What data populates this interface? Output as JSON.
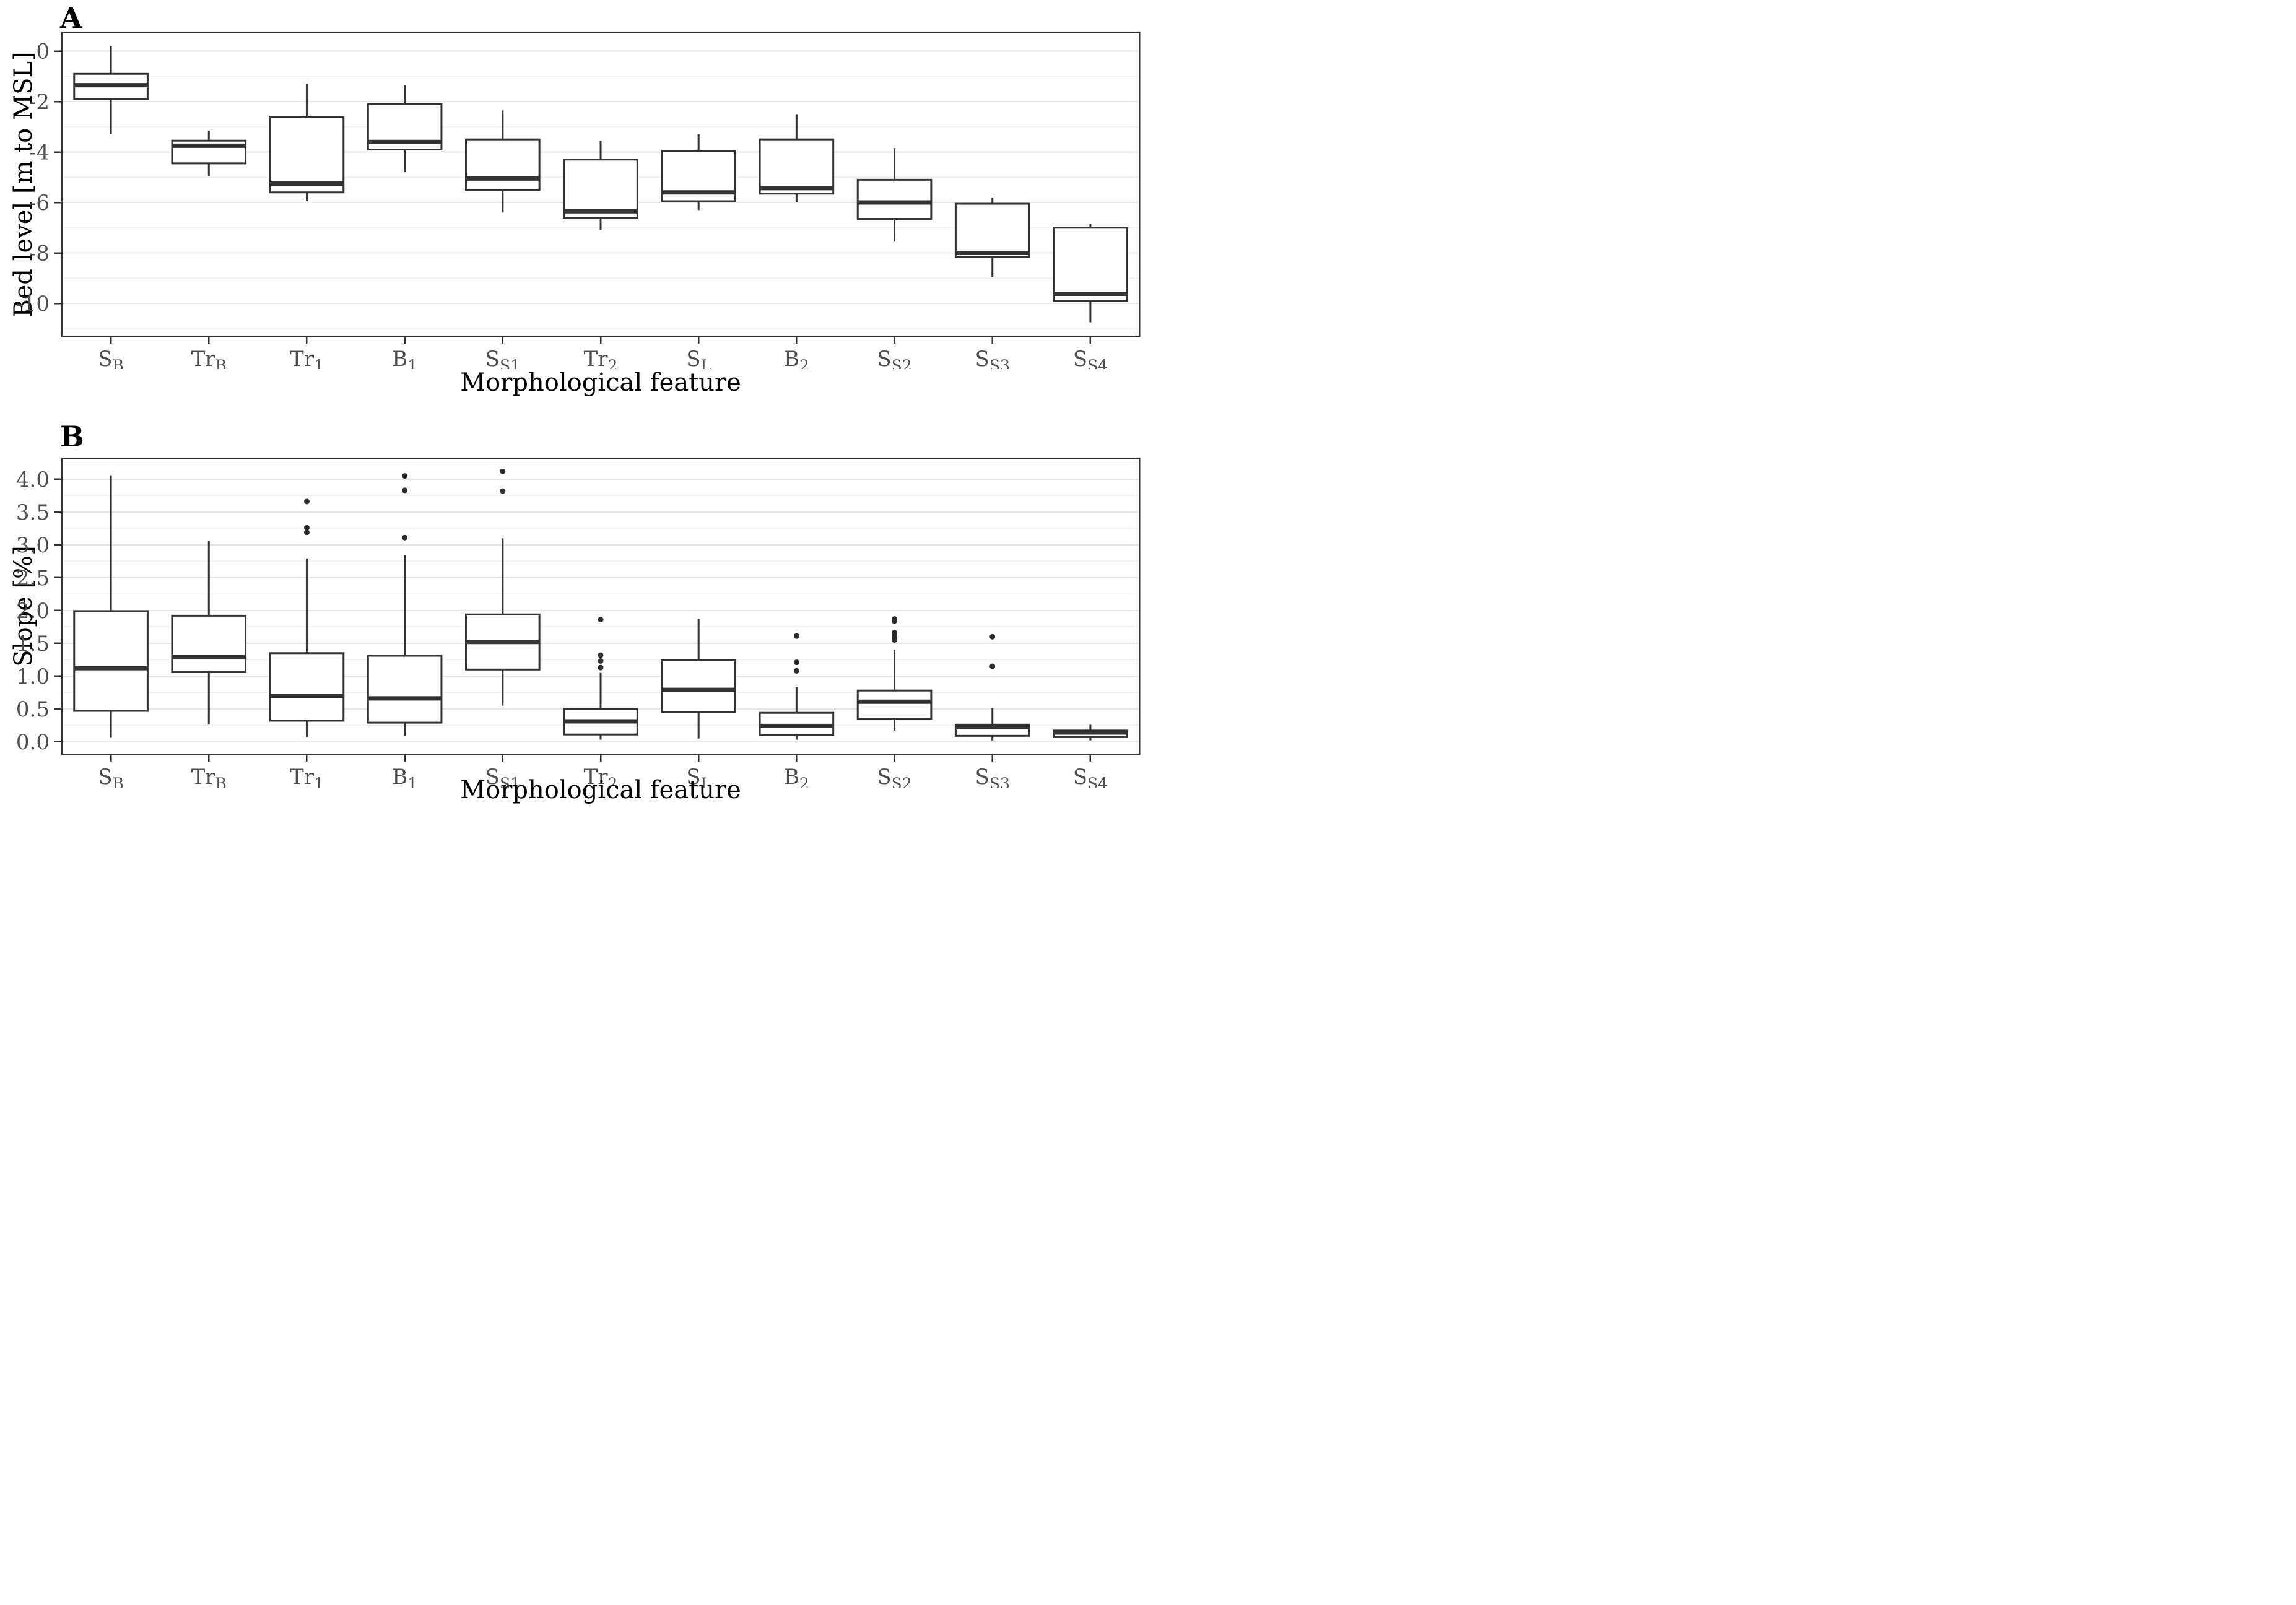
{
  "figure": {
    "kind": "two stacked box-plot panels",
    "background": "#ffffff"
  },
  "style": {
    "box_line_color": "#333333",
    "panel_border_color": "#333333",
    "tick_label_color": "#4d4d4d",
    "axis_title_color": "#000000",
    "major_grid_color": "#e6e6e6",
    "minor_grid_color": "#f1f1f1",
    "box_fill": "#ffffff",
    "outlier_color": "#2b2b2b"
  },
  "chart_data": [
    {
      "type": "boxplot",
      "title": "A",
      "xlabel": "Morphological feature",
      "ylabel": "Bed level [m to MSL]",
      "grid": true,
      "legend": "none",
      "ylim": [
        -11.3,
        0.75
      ],
      "y_ticks": [
        {
          "v": 0,
          "label": "0"
        },
        {
          "v": -2,
          "label": "-2"
        },
        {
          "v": -4,
          "label": "-4"
        },
        {
          "v": -6,
          "label": "-6"
        },
        {
          "v": -8,
          "label": "-8"
        },
        {
          "v": -10,
          "label": "-10"
        }
      ],
      "y_minor": [
        -1,
        -3,
        -5,
        -7,
        -9,
        -11
      ],
      "categories": [
        {
          "base": "S",
          "sub": "B"
        },
        {
          "base": "Tr",
          "sub": "B"
        },
        {
          "base": "Tr",
          "sub": "1"
        },
        {
          "base": "B",
          "sub": "1"
        },
        {
          "base": "S",
          "sub": "S1"
        },
        {
          "base": "Tr",
          "sub": "2"
        },
        {
          "base": "S",
          "sub": "L"
        },
        {
          "base": "B",
          "sub": "2"
        },
        {
          "base": "S",
          "sub": "S2"
        },
        {
          "base": "S",
          "sub": "S3"
        },
        {
          "base": "S",
          "sub": "S4"
        }
      ],
      "boxes": [
        {
          "whislo": -3.3,
          "q1": -1.9,
          "med": -1.35,
          "q3": -0.9,
          "whishi": 0.2,
          "outliers": []
        },
        {
          "whislo": -4.95,
          "q1": -4.45,
          "med": -3.75,
          "q3": -3.55,
          "whishi": -3.15,
          "outliers": []
        },
        {
          "whislo": -5.95,
          "q1": -5.6,
          "med": -5.25,
          "q3": -2.6,
          "whishi": -1.3,
          "outliers": []
        },
        {
          "whislo": -4.8,
          "q1": -3.9,
          "med": -3.6,
          "q3": -2.1,
          "whishi": -1.35,
          "outliers": []
        },
        {
          "whislo": -6.4,
          "q1": -5.5,
          "med": -5.05,
          "q3": -3.5,
          "whishi": -2.35,
          "outliers": []
        },
        {
          "whislo": -7.1,
          "q1": -6.6,
          "med": -6.35,
          "q3": -4.3,
          "whishi": -3.55,
          "outliers": []
        },
        {
          "whislo": -6.3,
          "q1": -5.95,
          "med": -5.6,
          "q3": -3.95,
          "whishi": -3.3,
          "outliers": []
        },
        {
          "whislo": -6.0,
          "q1": -5.65,
          "med": -5.43,
          "q3": -3.5,
          "whishi": -2.5,
          "outliers": []
        },
        {
          "whislo": -7.55,
          "q1": -6.65,
          "med": -6.0,
          "q3": -5.1,
          "whishi": -3.85,
          "outliers": []
        },
        {
          "whislo": -8.95,
          "q1": -8.15,
          "med": -8.0,
          "q3": -6.05,
          "whishi": -5.8,
          "outliers": []
        },
        {
          "whislo": -10.75,
          "q1": -9.9,
          "med": -9.62,
          "q3": -7.0,
          "whishi": -6.85,
          "outliers": []
        }
      ]
    },
    {
      "type": "boxplot",
      "title": "B",
      "xlabel": "Morphological feature",
      "ylabel": "Slope [%]",
      "grid": true,
      "legend": "none",
      "ylim": [
        -0.19,
        4.32
      ],
      "y_ticks": [
        {
          "v": 0.0,
          "label": "0.0"
        },
        {
          "v": 0.5,
          "label": "0.5"
        },
        {
          "v": 1.0,
          "label": "1.0"
        },
        {
          "v": 1.5,
          "label": "1.5"
        },
        {
          "v": 2.0,
          "label": "2.0"
        },
        {
          "v": 2.5,
          "label": "2.5"
        },
        {
          "v": 3.0,
          "label": "3.0"
        },
        {
          "v": 3.5,
          "label": "3.5"
        },
        {
          "v": 4.0,
          "label": "4.0"
        }
      ],
      "y_minor": [
        0.25,
        0.75,
        1.25,
        1.75,
        2.25,
        2.75,
        3.25,
        3.75,
        4.25
      ],
      "categories": [
        {
          "base": "S",
          "sub": "B"
        },
        {
          "base": "Tr",
          "sub": "B"
        },
        {
          "base": "Tr",
          "sub": "1"
        },
        {
          "base": "B",
          "sub": "1"
        },
        {
          "base": "S",
          "sub": "S1"
        },
        {
          "base": "Tr",
          "sub": "2"
        },
        {
          "base": "S",
          "sub": "L"
        },
        {
          "base": "B",
          "sub": "2"
        },
        {
          "base": "S",
          "sub": "S2"
        },
        {
          "base": "S",
          "sub": "S3"
        },
        {
          "base": "S",
          "sub": "S4"
        }
      ],
      "boxes": [
        {
          "whislo": 0.06,
          "q1": 0.47,
          "med": 1.12,
          "q3": 1.99,
          "whishi": 4.06,
          "outliers": []
        },
        {
          "whislo": 0.26,
          "q1": 1.06,
          "med": 1.29,
          "q3": 1.92,
          "whishi": 3.06,
          "outliers": []
        },
        {
          "whislo": 0.07,
          "q1": 0.32,
          "med": 0.7,
          "q3": 1.35,
          "whishi": 2.79,
          "outliers": [
            3.19,
            3.26,
            3.66
          ]
        },
        {
          "whislo": 0.09,
          "q1": 0.29,
          "med": 0.66,
          "q3": 1.31,
          "whishi": 2.84,
          "outliers": [
            3.11,
            3.83,
            4.05
          ]
        },
        {
          "whislo": 0.55,
          "q1": 1.1,
          "med": 1.52,
          "q3": 1.94,
          "whishi": 3.1,
          "outliers": [
            3.82,
            4.12
          ]
        },
        {
          "whislo": 0.03,
          "q1": 0.11,
          "med": 0.31,
          "q3": 0.5,
          "whishi": 1.05,
          "outliers": [
            1.13,
            1.23,
            1.32,
            1.86
          ]
        },
        {
          "whislo": 0.05,
          "q1": 0.45,
          "med": 0.79,
          "q3": 1.24,
          "whishi": 1.87,
          "outliers": []
        },
        {
          "whislo": 0.03,
          "q1": 0.1,
          "med": 0.24,
          "q3": 0.44,
          "whishi": 0.83,
          "outliers": [
            1.08,
            1.21,
            1.61
          ]
        },
        {
          "whislo": 0.17,
          "q1": 0.35,
          "med": 0.61,
          "q3": 0.78,
          "whishi": 1.4,
          "outliers": [
            1.55,
            1.6,
            1.66,
            1.84,
            1.87
          ]
        },
        {
          "whislo": 0.02,
          "q1": 0.09,
          "med": 0.22,
          "q3": 0.26,
          "whishi": 0.51,
          "outliers": [
            1.15,
            1.6
          ]
        },
        {
          "whislo": 0.02,
          "q1": 0.07,
          "med": 0.14,
          "q3": 0.17,
          "whishi": 0.26,
          "outliers": []
        }
      ]
    }
  ]
}
